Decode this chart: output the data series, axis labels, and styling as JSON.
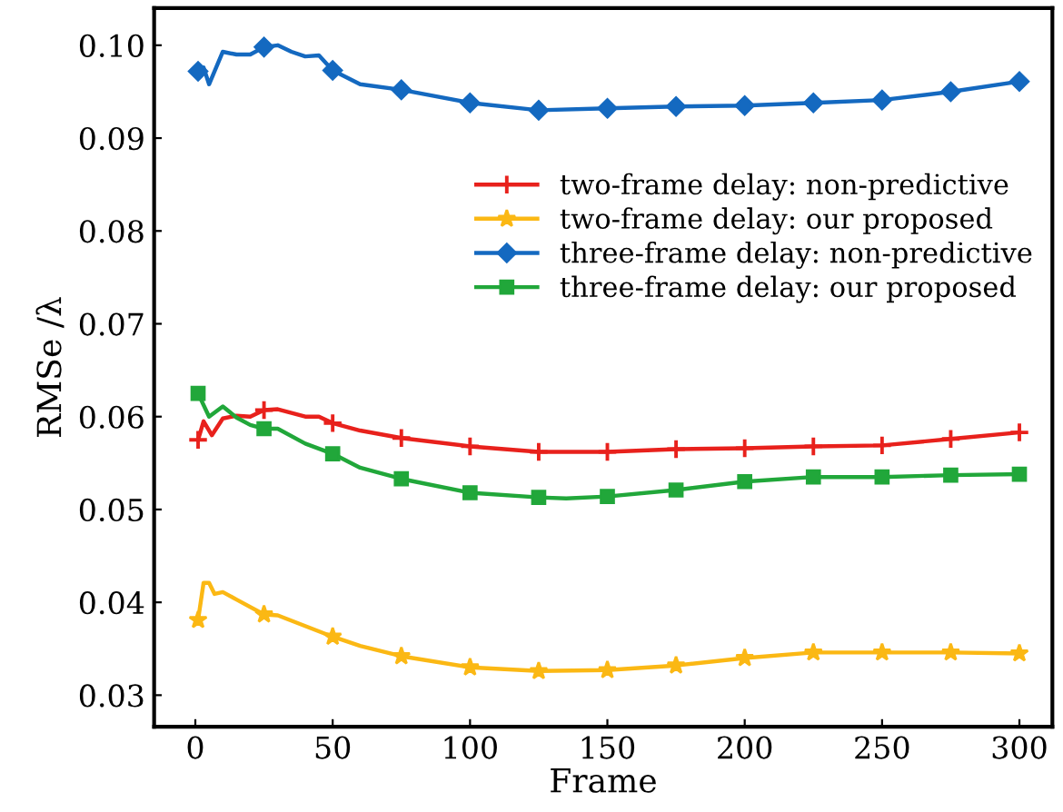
{
  "chart_data": {
    "type": "line",
    "xlabel": "Frame",
    "ylabel": "RMSe /λ",
    "xlim": [
      -15,
      312
    ],
    "ylim": [
      0.0266,
      0.104
    ],
    "xticks": [
      0,
      50,
      100,
      150,
      200,
      250,
      300
    ],
    "yticks": [
      {
        "value": 0.03,
        "label": "0.03"
      },
      {
        "value": 0.04,
        "label": "0.04"
      },
      {
        "value": 0.05,
        "label": "0.05"
      },
      {
        "value": 0.06,
        "label": "0.06"
      },
      {
        "value": 0.07,
        "label": "0.07"
      },
      {
        "value": 0.08,
        "label": "0.08"
      },
      {
        "value": 0.09,
        "label": "0.09"
      },
      {
        "value": 0.1,
        "label": "0.10"
      }
    ],
    "grid": false,
    "legend": "right",
    "series": [
      {
        "name": "two-frame delay: non-predictive",
        "color": "#e8211c",
        "marker": "cross",
        "x": [
          1,
          3,
          6,
          10,
          15,
          20,
          25,
          30,
          40,
          45,
          50,
          60,
          75,
          100,
          125,
          150,
          175,
          200,
          225,
          250,
          275,
          300
        ],
        "values": [
          0.0575,
          0.0595,
          0.058,
          0.0598,
          0.0601,
          0.06,
          0.0607,
          0.0608,
          0.06,
          0.06,
          0.0593,
          0.0585,
          0.0577,
          0.0568,
          0.0562,
          0.0562,
          0.0565,
          0.0566,
          0.0568,
          0.0569,
          0.0576,
          0.0583
        ]
      },
      {
        "name": "two-frame delay: our proposed",
        "color": "#fbb814",
        "marker": "star",
        "x": [
          1,
          3,
          5,
          7,
          10,
          15,
          25,
          30,
          50,
          60,
          75,
          100,
          125,
          150,
          175,
          200,
          225,
          250,
          275,
          300
        ],
        "values": [
          0.0381,
          0.0421,
          0.0421,
          0.0409,
          0.0411,
          0.0403,
          0.0387,
          0.0386,
          0.0363,
          0.0353,
          0.0342,
          0.033,
          0.0326,
          0.0327,
          0.0332,
          0.034,
          0.0346,
          0.0346,
          0.0346,
          0.0345
        ]
      },
      {
        "name": "three-frame delay: non-predictive",
        "color": "#1469c0",
        "marker": "diamond",
        "x": [
          1,
          3,
          5,
          10,
          15,
          20,
          25,
          30,
          35,
          40,
          45,
          50,
          60,
          75,
          100,
          125,
          150,
          175,
          200,
          225,
          250,
          275,
          300
        ],
        "values": [
          0.0972,
          0.0976,
          0.0958,
          0.0993,
          0.099,
          0.099,
          0.0998,
          0.1,
          0.0993,
          0.0988,
          0.0989,
          0.0973,
          0.0958,
          0.0952,
          0.0938,
          0.093,
          0.0932,
          0.0934,
          0.0935,
          0.0938,
          0.0941,
          0.095,
          0.0961
        ]
      },
      {
        "name": "three-frame delay: our proposed",
        "color": "#21a73a",
        "marker": "square",
        "x": [
          1,
          5,
          10,
          15,
          20,
          25,
          30,
          40,
          50,
          60,
          75,
          100,
          125,
          135,
          150,
          175,
          200,
          225,
          250,
          275,
          300
        ],
        "values": [
          0.0625,
          0.06,
          0.0611,
          0.0599,
          0.0591,
          0.0587,
          0.0587,
          0.0571,
          0.056,
          0.0545,
          0.0533,
          0.0518,
          0.0513,
          0.0512,
          0.0514,
          0.0521,
          0.053,
          0.0535,
          0.0535,
          0.0537,
          0.0538
        ]
      }
    ]
  }
}
